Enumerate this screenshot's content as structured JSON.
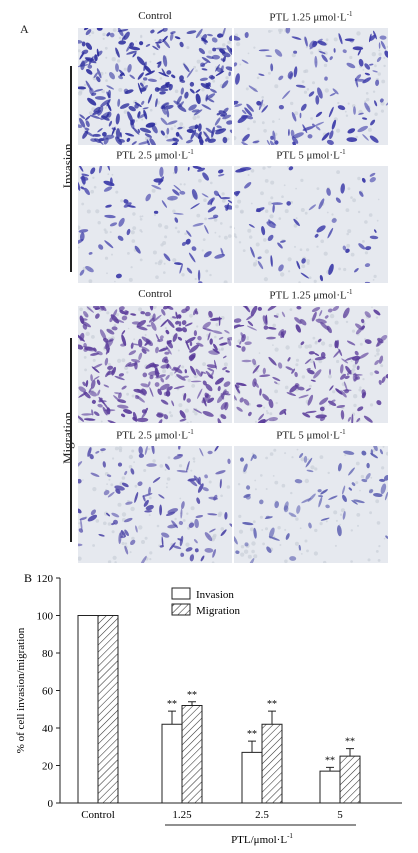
{
  "panel_a": {
    "letter": "A",
    "groups": [
      {
        "label": "Invasion",
        "panels": [
          {
            "title": "Control",
            "density": 1.0,
            "stain": "#2e2f9e"
          },
          {
            "title": "PTL 1.25 μmol·L",
            "density": 0.45,
            "stain": "#3b3aa8"
          },
          {
            "title": "PTL 2.5 μmol·L",
            "density": 0.32,
            "stain": "#3b3aa8"
          },
          {
            "title": "PTL 5 μmol·L",
            "density": 0.2,
            "stain": "#3b3aa8"
          }
        ]
      },
      {
        "label": "Migration",
        "panels": [
          {
            "title": "Control",
            "density": 1.0,
            "stain": "#5a3c9a"
          },
          {
            "title": "PTL 1.25 μmol·L",
            "density": 0.6,
            "stain": "#5a3c9a"
          },
          {
            "title": "PTL 2.5 μmol·L",
            "density": 0.42,
            "stain": "#4f48a8"
          },
          {
            "title": "PTL 5 μmol·L",
            "density": 0.26,
            "stain": "#5a5db0"
          }
        ]
      }
    ],
    "superscript": "-1"
  },
  "chart_data": {
    "type": "bar",
    "panel_letter": "B",
    "categories": [
      "Control",
      "1.25",
      "2.5",
      "5"
    ],
    "series": [
      {
        "name": "Invasion",
        "values": [
          100,
          42,
          27,
          17
        ],
        "errors": [
          0,
          7,
          6,
          2
        ],
        "sig": [
          "",
          "**",
          "**",
          "**"
        ],
        "pattern": "open"
      },
      {
        "name": "Migration",
        "values": [
          100,
          52,
          42,
          25
        ],
        "errors": [
          0,
          2,
          7,
          4
        ],
        "sig": [
          "",
          "**",
          "**",
          "**"
        ],
        "pattern": "hatched"
      }
    ],
    "ylabel": "% of cell invasion/migration",
    "xlabel": "PTL/μmol·L",
    "xlabel_sup": "-1",
    "yticks": [
      0,
      20,
      40,
      60,
      80,
      100,
      120
    ],
    "ylim": [
      0,
      120
    ],
    "legend_position": "top-center"
  }
}
